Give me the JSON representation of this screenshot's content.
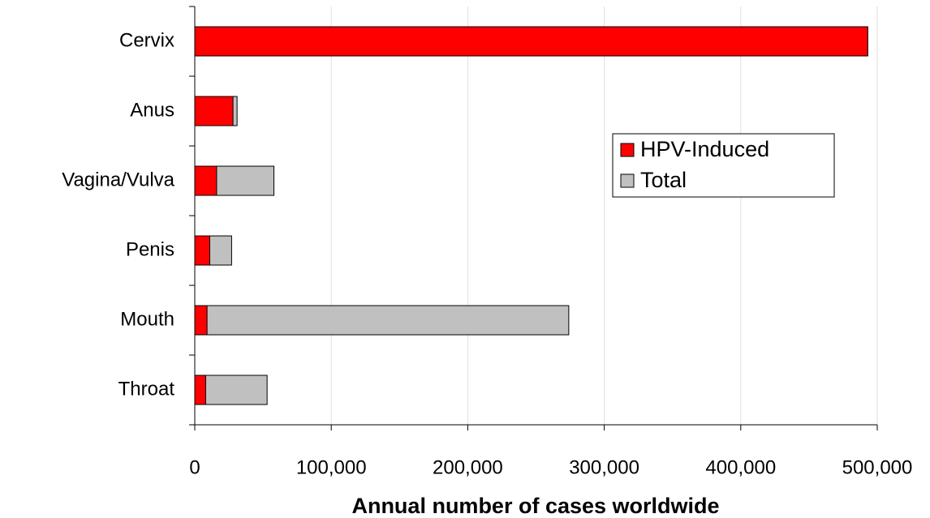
{
  "chart_data": {
    "type": "barh",
    "x_label": "Annual number of cases worldwide",
    "categories": [
      "Cervix",
      "Anus",
      "Vagina/Vulva",
      "Penis",
      "Mouth",
      "Throat"
    ],
    "series": [
      {
        "name": "HPV-Induced",
        "color": "#ff0000",
        "values": [
          493000,
          28000,
          16000,
          11000,
          9000,
          8000
        ]
      },
      {
        "name": "Total",
        "color": "#c0c0c0",
        "values": [
          493000,
          31000,
          58000,
          27000,
          274000,
          53000
        ]
      }
    ],
    "xlim": [
      0,
      500000
    ],
    "xticks": [
      0,
      {
        "value": 100000,
        "label": "100,000"
      },
      {
        "value": 200000,
        "label": "200,000"
      },
      {
        "value": 300000,
        "label": "300,000"
      },
      {
        "value": 400000,
        "label": "400,000"
      },
      {
        "value": 500000,
        "label": "500,000"
      }
    ],
    "grid": true,
    "legend": "right",
    "overlap": true
  }
}
